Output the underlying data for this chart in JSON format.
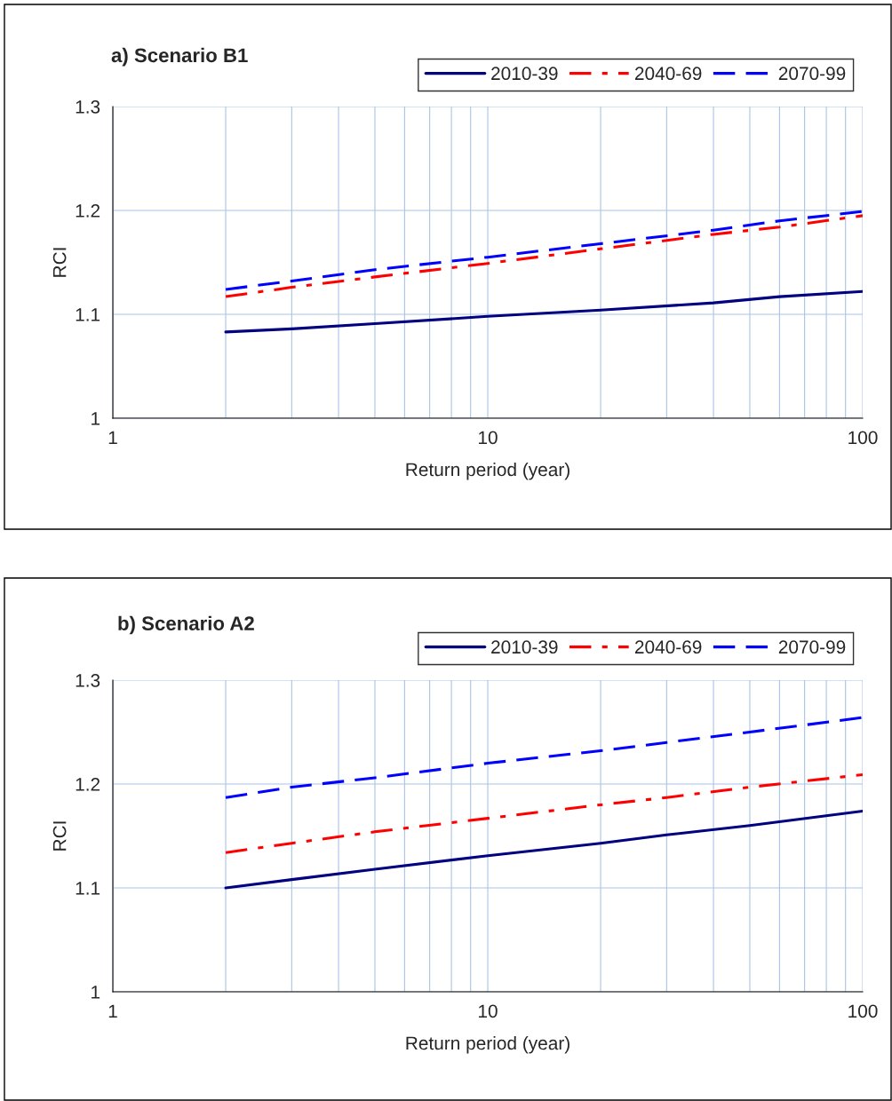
{
  "chart_data": [
    {
      "type": "line",
      "title": "a) Scenario B1",
      "xlabel": "Return period (year)",
      "ylabel": "RCI",
      "log": "x",
      "x": [
        2,
        3,
        5,
        10,
        20,
        40,
        60,
        100
      ],
      "series": [
        {
          "name": "2010-39",
          "color": "#000080",
          "line_style": "solid",
          "values": [
            1.083,
            1.086,
            1.091,
            1.098,
            1.104,
            1.111,
            1.117,
            1.122
          ]
        },
        {
          "name": "2040-69",
          "color": "#ff0000",
          "line_style": "dashdot",
          "values": [
            1.117,
            1.126,
            1.136,
            1.149,
            1.163,
            1.177,
            1.184,
            1.195
          ]
        },
        {
          "name": "2070-99",
          "color": "#0000ff",
          "line_style": "dashed",
          "values": [
            1.124,
            1.132,
            1.143,
            1.155,
            1.168,
            1.181,
            1.19,
            1.199
          ]
        }
      ],
      "xlim": [
        1,
        100
      ],
      "ylim": [
        1,
        1.3
      ],
      "xticks": [
        1,
        {
          "value": 2,
          "label": null
        },
        {
          "value": 3,
          "label": null
        },
        {
          "value": 4,
          "label": null
        },
        {
          "value": 5,
          "label": null
        },
        {
          "value": 6,
          "label": null
        },
        {
          "value": 7,
          "label": null
        },
        {
          "value": 8,
          "label": null
        },
        {
          "value": 9,
          "label": null
        },
        10,
        {
          "value": 20,
          "label": null
        },
        {
          "value": 30,
          "label": null
        },
        {
          "value": 40,
          "label": null
        },
        {
          "value": 50,
          "label": null
        },
        {
          "value": 60,
          "label": null
        },
        {
          "value": 70,
          "label": null
        },
        {
          "value": 80,
          "label": null
        },
        {
          "value": 90,
          "label": null
        },
        100
      ],
      "yticks": [
        1,
        1.1,
        1.2,
        1.3
      ],
      "grid": true,
      "legend": "top right",
      "marker": "none"
    },
    {
      "type": "line",
      "title": "b) Scenario A2",
      "xlabel": "Return period (year)",
      "ylabel": "RCI",
      "log": "x",
      "x": [
        2,
        3,
        5,
        10,
        20,
        30,
        50,
        100
      ],
      "series": [
        {
          "name": "2010-39",
          "color": "#000080",
          "line_style": "solid",
          "values": [
            1.1,
            1.108,
            1.118,
            1.131,
            1.143,
            1.151,
            1.16,
            1.174
          ]
        },
        {
          "name": "2040-69",
          "color": "#ff0000",
          "line_style": "dashdot",
          "values": [
            1.134,
            1.143,
            1.154,
            1.167,
            1.18,
            1.187,
            1.197,
            1.209
          ]
        },
        {
          "name": "2070-99",
          "color": "#0000ff",
          "line_style": "dashed",
          "values": [
            1.187,
            1.197,
            1.206,
            1.22,
            1.232,
            1.24,
            1.25,
            1.264
          ]
        }
      ],
      "xlim": [
        1,
        100
      ],
      "ylim": [
        1,
        1.3
      ],
      "xticks": [
        1,
        {
          "value": 2,
          "label": null
        },
        {
          "value": 3,
          "label": null
        },
        {
          "value": 4,
          "label": null
        },
        {
          "value": 5,
          "label": null
        },
        {
          "value": 6,
          "label": null
        },
        {
          "value": 7,
          "label": null
        },
        {
          "value": 8,
          "label": null
        },
        {
          "value": 9,
          "label": null
        },
        10,
        {
          "value": 20,
          "label": null
        },
        {
          "value": 30,
          "label": null
        },
        {
          "value": 40,
          "label": null
        },
        {
          "value": 50,
          "label": null
        },
        {
          "value": 60,
          "label": null
        },
        {
          "value": 70,
          "label": null
        },
        {
          "value": 80,
          "label": null
        },
        {
          "value": 90,
          "label": null
        },
        100
      ],
      "yticks": [
        1,
        1.1,
        1.2,
        1.3
      ],
      "grid": true,
      "legend": "top right",
      "marker": "none"
    }
  ]
}
